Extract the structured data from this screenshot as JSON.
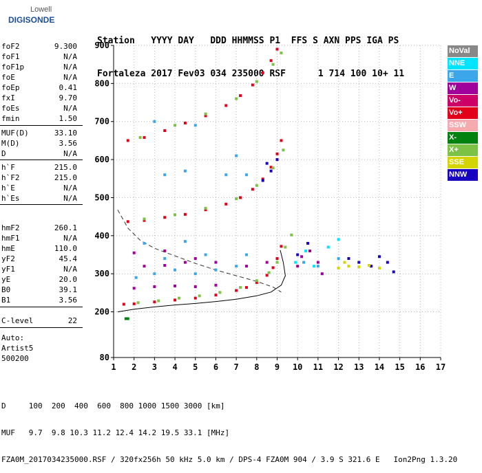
{
  "logo": {
    "line1": "Lowell",
    "line2": "DIGISONDE"
  },
  "header": {
    "line1": "Station   YYYY DAY   DDD HHMMSS P1  FFS S AXN PPS IGA PS",
    "line2": "Fortaleza 2017 Fev03 034 235000 RSF      1 714 100 10+ 11"
  },
  "params": {
    "group1": [
      {
        "k": "foF2",
        "v": "9.300"
      },
      {
        "k": "foF1",
        "v": "N/A"
      },
      {
        "k": "foF1p",
        "v": "N/A"
      },
      {
        "k": "foE",
        "v": "N/A"
      },
      {
        "k": "foEp",
        "v": "0.41"
      },
      {
        "k": "fxI",
        "v": "9.70"
      },
      {
        "k": "foEs",
        "v": "N/A"
      },
      {
        "k": "fmin",
        "v": "1.50"
      }
    ],
    "group2": [
      {
        "k": "MUF(D)",
        "v": "33.10"
      },
      {
        "k": "M(D)",
        "v": "3.56"
      },
      {
        "k": "D",
        "v": "N/A"
      }
    ],
    "group3": [
      {
        "k": "h`F",
        "v": "215.0"
      },
      {
        "k": "h`F2",
        "v": "215.0"
      },
      {
        "k": "h`E",
        "v": "N/A"
      },
      {
        "k": "h`Es",
        "v": "N/A"
      }
    ],
    "group4": [
      {
        "k": "hmF2",
        "v": "260.1"
      },
      {
        "k": "hmF1",
        "v": "N/A"
      },
      {
        "k": "hmE",
        "v": "110.0"
      },
      {
        "k": "yF2",
        "v": "45.4"
      },
      {
        "k": "yF1",
        "v": "N/A"
      },
      {
        "k": "yE",
        "v": "20.0"
      },
      {
        "k": "B0",
        "v": "39.1"
      },
      {
        "k": "B1",
        "v": "3.56"
      }
    ],
    "group5": [
      {
        "k": "C-level",
        "v": "22"
      }
    ],
    "auto": {
      "label": "Auto:",
      "program": "Artist5",
      "version": "500200"
    }
  },
  "legend": [
    {
      "label": "NoVal",
      "color": "#888888"
    },
    {
      "label": "NNE",
      "color": "#00e5ff"
    },
    {
      "label": "E",
      "color": "#3ba7ea"
    },
    {
      "label": "W",
      "color": "#a0009c"
    },
    {
      "label": "Vo-",
      "color": "#cc0066"
    },
    {
      "label": "Vo+",
      "color": "#e2001a"
    },
    {
      "label": "SSW",
      "color": "#f5aab0"
    },
    {
      "label": "X-",
      "color": "#00820f"
    },
    {
      "label": "X+",
      "color": "#7cc244"
    },
    {
      "label": "SSE",
      "color": "#d4d400"
    },
    {
      "label": "NNW",
      "color": "#1800c0"
    }
  ],
  "footer": {
    "d_line": "D     100  200  400  600  800 1000 1500 3000 [km]",
    "muf_line": "MUF   9.7  9.8 10.3 11.2 12.4 14.2 19.5 33.1 [MHz]",
    "file_line": "FZA0M_2017034235000.RSF / 320fx256h 50 kHz 5.0 km / DPS-4 FZA0M 904 / 3.9 S 321.6 E   Ion2Png 1.3.20"
  },
  "chart_data": {
    "type": "scatter",
    "title": "",
    "xlabel": "",
    "ylabel": "",
    "xlim": [
      1,
      17
    ],
    "ylim": [
      80,
      900
    ],
    "x_ticks": [
      1,
      2,
      3,
      4,
      5,
      6,
      7,
      8,
      9,
      10,
      11,
      12,
      13,
      14,
      15,
      16,
      17
    ],
    "y_ticks": [
      200,
      300,
      400,
      500,
      600,
      700,
      800,
      900
    ],
    "y_tick_extra": [
      80
    ],
    "grid": true,
    "series": [
      {
        "name": "Vo+",
        "color": "#e2001a",
        "points": [
          [
            1.5,
            220
          ],
          [
            2,
            221
          ],
          [
            3,
            226
          ],
          [
            4,
            231
          ],
          [
            5,
            236
          ],
          [
            6,
            244
          ],
          [
            7,
            256
          ],
          [
            7.5,
            264
          ],
          [
            8,
            277
          ],
          [
            8.5,
            296
          ],
          [
            8.8,
            316
          ],
          [
            9,
            340
          ],
          [
            9.2,
            372
          ]
        ]
      },
      {
        "name": "Vo+",
        "color": "#e2001a",
        "points": [
          [
            1.7,
            437
          ],
          [
            2.5,
            440
          ],
          [
            3.5,
            448
          ],
          [
            4.5,
            456
          ],
          [
            5.5,
            468
          ],
          [
            6.5,
            483
          ],
          [
            7.2,
            500
          ],
          [
            7.8,
            522
          ],
          [
            8.3,
            549
          ],
          [
            8.7,
            580
          ],
          [
            9,
            615
          ],
          [
            9.2,
            650
          ]
        ]
      },
      {
        "name": "Vo+",
        "color": "#e2001a",
        "points": [
          [
            1.7,
            650
          ],
          [
            2.5,
            658
          ],
          [
            3.5,
            676
          ],
          [
            4.5,
            696
          ],
          [
            5.5,
            715
          ],
          [
            6.5,
            742
          ],
          [
            7.2,
            768
          ],
          [
            7.8,
            796
          ],
          [
            8.3,
            828
          ],
          [
            8.7,
            860
          ],
          [
            9,
            890
          ]
        ]
      },
      {
        "name": "X+",
        "color": "#7cc244",
        "points": [
          [
            2.2,
            224
          ],
          [
            3.2,
            229
          ],
          [
            4.2,
            236
          ],
          [
            5.2,
            242
          ],
          [
            6.2,
            251
          ],
          [
            7.2,
            264
          ],
          [
            8,
            282
          ],
          [
            8.6,
            303
          ],
          [
            9,
            330
          ],
          [
            9.4,
            370
          ],
          [
            9.7,
            402
          ]
        ]
      },
      {
        "name": "X+",
        "color": "#7cc244",
        "points": [
          [
            2.5,
            444
          ],
          [
            4,
            455
          ],
          [
            5.5,
            472
          ],
          [
            7,
            497
          ],
          [
            8,
            532
          ],
          [
            8.8,
            578
          ],
          [
            9.3,
            625
          ]
        ]
      },
      {
        "name": "X+",
        "color": "#7cc244",
        "points": [
          [
            2.3,
            658
          ],
          [
            4,
            690
          ],
          [
            5.5,
            720
          ],
          [
            7,
            760
          ],
          [
            8,
            805
          ],
          [
            8.8,
            850
          ],
          [
            9.2,
            880
          ]
        ]
      },
      {
        "name": "W",
        "color": "#a0009c",
        "points": [
          [
            2,
            262
          ],
          [
            3,
            266
          ],
          [
            4,
            268
          ],
          [
            5,
            266
          ],
          [
            6,
            270
          ],
          [
            2.5,
            320
          ],
          [
            3.5,
            322
          ],
          [
            4.5,
            330
          ],
          [
            2,
            355
          ],
          [
            3.5,
            360
          ],
          [
            5,
            340
          ],
          [
            6,
            330
          ],
          [
            7.5,
            320
          ],
          [
            8.5,
            330
          ],
          [
            10.2,
            345
          ],
          [
            10.6,
            360
          ],
          [
            11,
            330
          ],
          [
            10,
            320
          ],
          [
            11.2,
            300
          ]
        ]
      },
      {
        "name": "E",
        "color": "#3ba7ea",
        "points": [
          [
            2.1,
            290
          ],
          [
            3,
            300
          ],
          [
            4,
            310
          ],
          [
            5,
            300
          ],
          [
            6,
            310
          ],
          [
            7,
            320
          ],
          [
            3.5,
            340
          ],
          [
            5.5,
            350
          ],
          [
            7.5,
            350
          ],
          [
            2.5,
            380
          ],
          [
            4.5,
            385
          ],
          [
            3.5,
            560
          ],
          [
            4.5,
            570
          ],
          [
            6.5,
            560
          ],
          [
            7.5,
            560
          ],
          [
            3,
            700
          ],
          [
            5,
            690
          ],
          [
            7,
            610
          ],
          [
            10.3,
            330
          ],
          [
            11,
            320
          ],
          [
            12,
            340
          ]
        ]
      },
      {
        "name": "NNW",
        "color": "#1800c0",
        "points": [
          [
            8.3,
            545
          ],
          [
            8.7,
            570
          ],
          [
            9,
            600
          ],
          [
            8.5,
            590
          ],
          [
            10,
            350
          ],
          [
            10.5,
            380
          ],
          [
            12.5,
            340
          ],
          [
            13,
            330
          ],
          [
            13.6,
            320
          ],
          [
            14,
            345
          ],
          [
            14.4,
            330
          ],
          [
            14.7,
            305
          ]
        ]
      },
      {
        "name": "SSE",
        "color": "#d4d400",
        "points": [
          [
            12,
            315
          ],
          [
            12.5,
            320
          ],
          [
            13,
            318
          ],
          [
            13.5,
            322
          ],
          [
            14,
            315
          ],
          [
            12.3,
            330
          ]
        ]
      },
      {
        "name": "NNE",
        "color": "#00e5ff",
        "points": [
          [
            9.9,
            330
          ],
          [
            10.4,
            360
          ],
          [
            10.8,
            320
          ],
          [
            11.5,
            370
          ],
          [
            12,
            390
          ]
        ]
      },
      {
        "name": "X-",
        "color": "#00820f",
        "points": [
          [
            1.6,
            182
          ],
          [
            1.7,
            182
          ]
        ]
      }
    ],
    "curves": [
      {
        "style": "solid",
        "points": [
          [
            1.2,
            200
          ],
          [
            2,
            207
          ],
          [
            3,
            213
          ],
          [
            4,
            218
          ],
          [
            5,
            222
          ],
          [
            6,
            227
          ],
          [
            7,
            233
          ],
          [
            8,
            242
          ],
          [
            8.7,
            252
          ],
          [
            9.2,
            270
          ],
          [
            9.4,
            295
          ],
          [
            9.3,
            330
          ],
          [
            9.15,
            362
          ]
        ]
      },
      {
        "style": "dashed",
        "points": [
          [
            1.2,
            468
          ],
          [
            1.7,
            420
          ],
          [
            2.3,
            388
          ],
          [
            3,
            367
          ],
          [
            4,
            347
          ],
          [
            5,
            327
          ],
          [
            6,
            310
          ],
          [
            7,
            295
          ],
          [
            8,
            280
          ],
          [
            8.8,
            265
          ],
          [
            9.2,
            252
          ]
        ]
      }
    ]
  }
}
